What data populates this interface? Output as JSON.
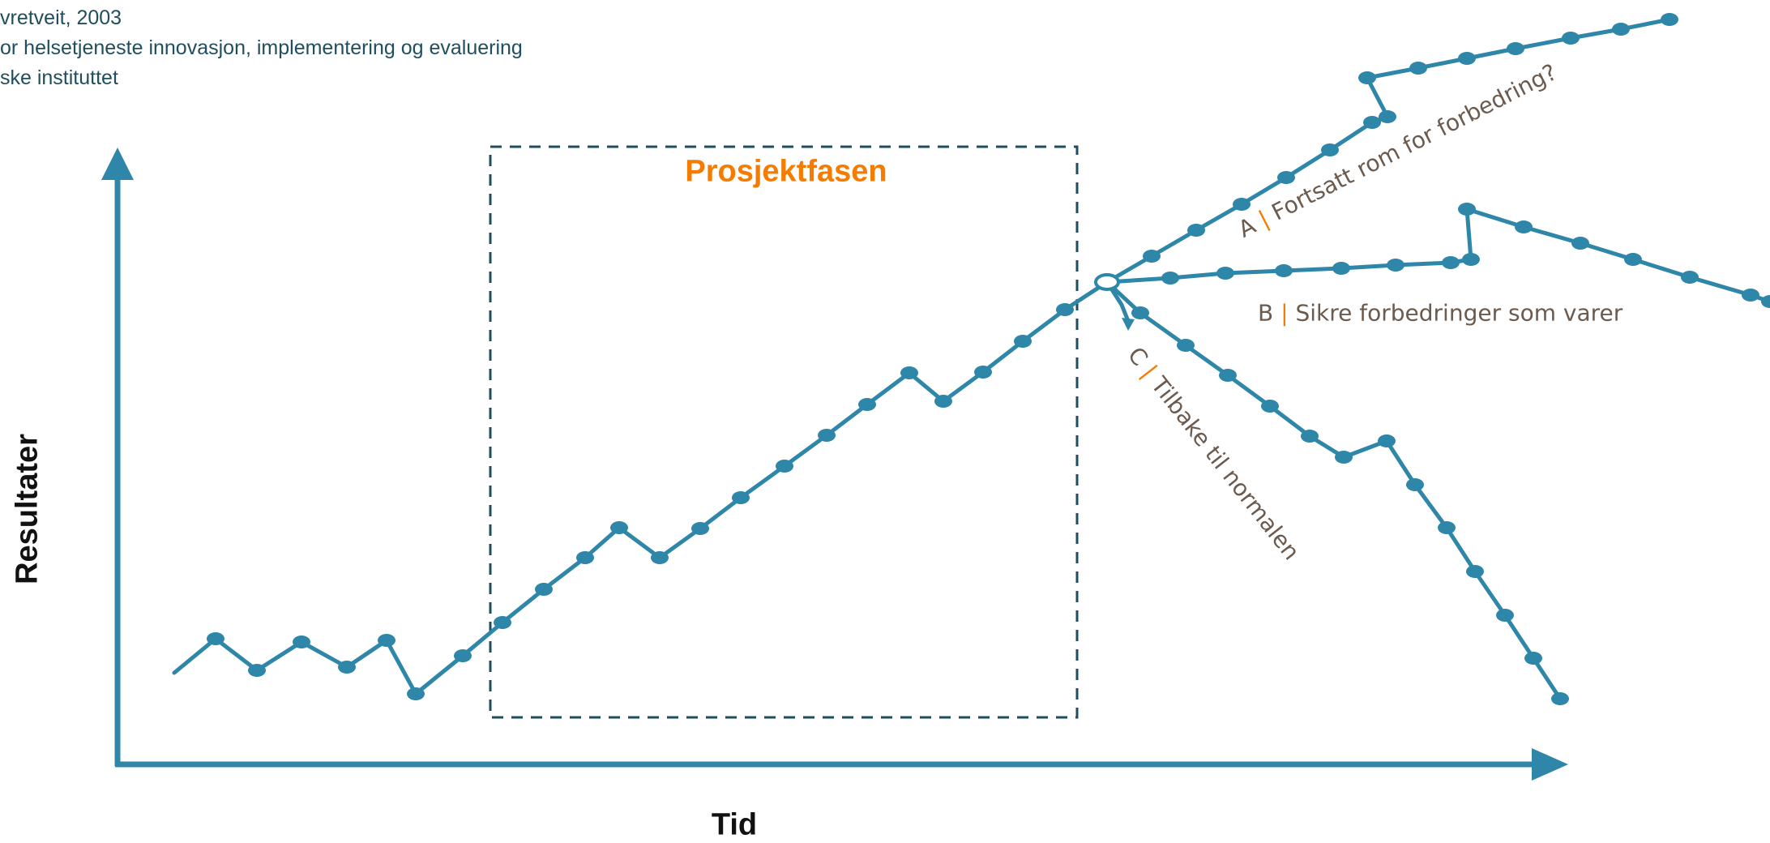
{
  "source": {
    "line1": "vretveit, 2003",
    "line2": "or helsetjeneste innovasjon, implementering og evaluering",
    "line3": "ske instituttet"
  },
  "axes": {
    "y_label": "Resultater",
    "x_label": "Tid"
  },
  "phase_label": "Prosjektfasen",
  "outcomes": {
    "a": {
      "letter": "A",
      "separator": "|",
      "text": "Fortsatt rom for forbedring?"
    },
    "b": {
      "letter": "B",
      "separator": "|",
      "text": "Sikre forbedringer som varer"
    },
    "c": {
      "letter": "C",
      "separator": "|",
      "text": "Tilbake til normalen"
    }
  },
  "colors": {
    "line": "#2e86a8",
    "axis": "#2e86a8",
    "phase_box": "#1f4e5f",
    "phase_label": "#f57c00",
    "separator": "#f57c00",
    "outcome_text": "#6b5a4e"
  }
}
